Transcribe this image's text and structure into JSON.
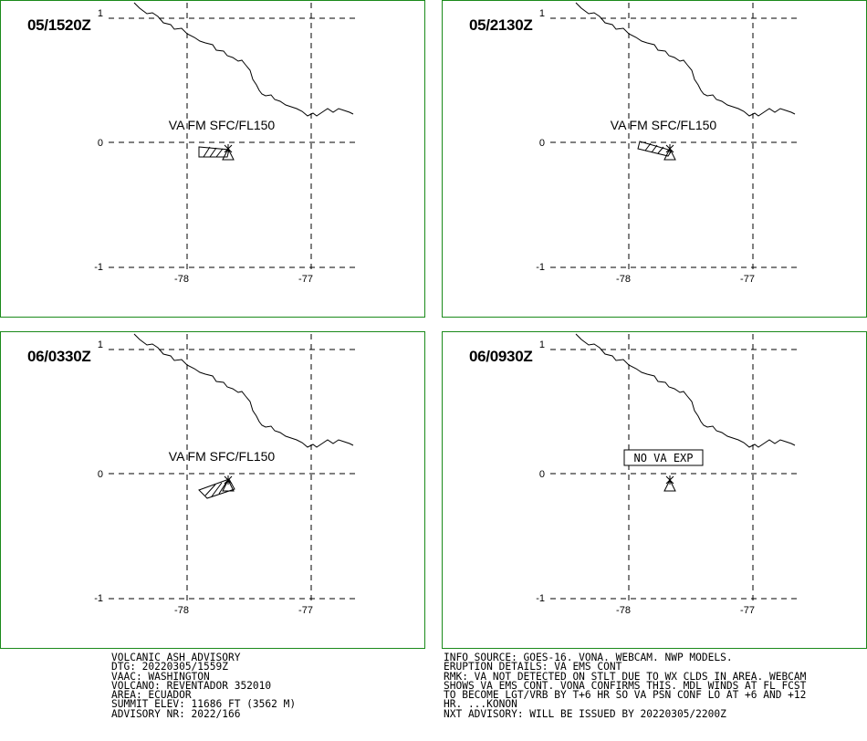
{
  "advisory_panels": [
    {
      "timestamp": "05/1520Z",
      "ash_label": "VA FM SFC/FL150",
      "status_box": "",
      "lat_labels": [
        "1",
        "0",
        "-1"
      ],
      "lon_labels": [
        "-78",
        "-77"
      ]
    },
    {
      "timestamp": "05/2130Z",
      "ash_label": "VA FM SFC/FL150",
      "status_box": "",
      "lat_labels": [
        "1",
        "0",
        "-1"
      ],
      "lon_labels": [
        "-78",
        "-77"
      ]
    },
    {
      "timestamp": "06/0330Z",
      "ash_label": "VA FM SFC/FL150",
      "status_box": "",
      "lat_labels": [
        "1",
        "0",
        "-1"
      ],
      "lon_labels": [
        "-78",
        "-77"
      ]
    },
    {
      "timestamp": "06/0930Z",
      "ash_label": "",
      "status_box": "NO VA EXP",
      "lat_labels": [
        "1",
        "0",
        "-1"
      ],
      "lon_labels": [
        "-78",
        "-77"
      ]
    }
  ],
  "advisory_text": {
    "left": [
      "VOLCANIC ASH ADVISORY",
      "DTG: 20220305/1559Z",
      "VAAC: WASHINGTON",
      "VOLCANO: REVENTADOR 352010",
      "AREA: ECUADOR",
      "SUMMIT ELEV: 11686 FT (3562 M)",
      "ADVISORY NR: 2022/166"
    ],
    "right": [
      "INFO SOURCE: GOES-16. VONA. WEBCAM. NWP MODELS.",
      "ERUPTION DETAILS: VA EMS CONT",
      "RMK: VA NOT DETECTED ON STLT DUE TO WX CLDS IN AREA. WEBCAM",
      "SHOWS VA EMS CONT. VONA CONFIRMS THIS. MDL WINDS AT FL FCST",
      "TO BECOME LGT/VRB BY T+6 HR SO VA PSN CONF LO AT +6 AND +12",
      "HR. ...KONON",
      "NXT ADVISORY: WILL BE ISSUED BY 20220305/2200Z"
    ]
  },
  "colors": {
    "panel_border": "#1a8a1a",
    "lines": "#000000",
    "background": "#ffffff"
  }
}
